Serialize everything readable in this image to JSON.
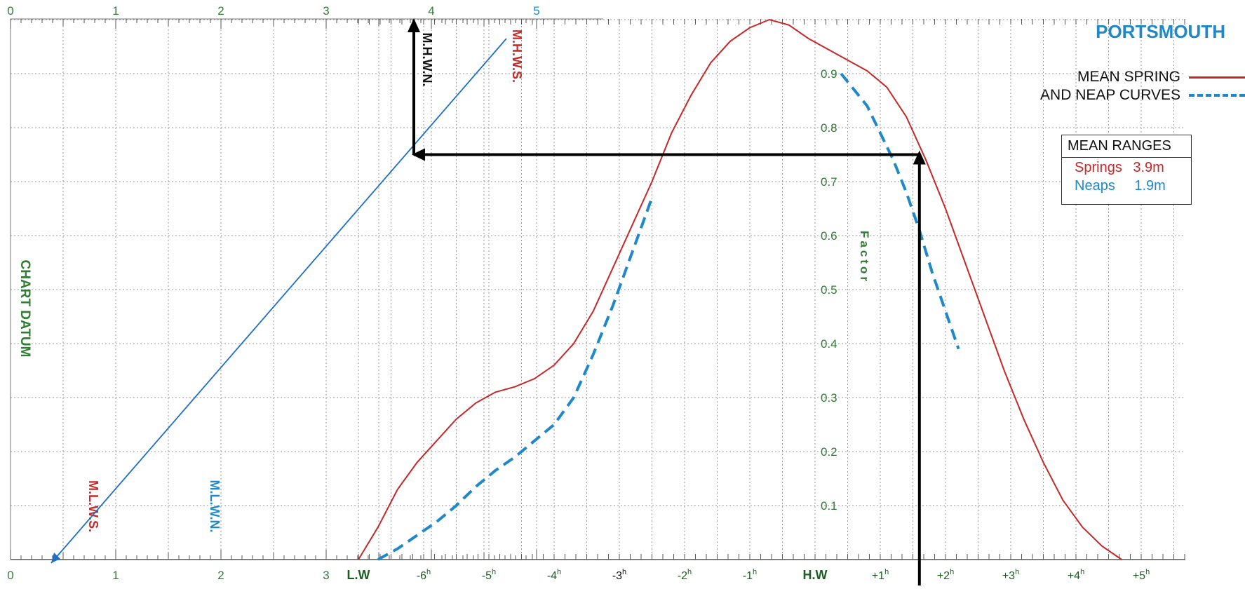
{
  "chart_data": {
    "type": "line",
    "title": "PORTSMOUTH",
    "legend": {
      "lines": [
        "MEAN SPRING",
        "AND NEAP CURVES"
      ],
      "placement": "top-right"
    },
    "mean_ranges": {
      "title": "MEAN RANGES",
      "rows": [
        {
          "label": "Springs",
          "value": "3.9m",
          "color": "#c62828"
        },
        {
          "label": "Neaps",
          "value": "1.9m",
          "color": "#1e88c8"
        }
      ]
    },
    "height_axis": {
      "ticks": [
        "0",
        "1",
        "2",
        "3",
        "4",
        "5"
      ],
      "range_m": [
        0,
        5
      ],
      "label": "CHART DATUM"
    },
    "height_markers": [
      {
        "label": "M.L.W.S.",
        "value": 0.7,
        "color": "#c62828"
      },
      {
        "label": "M.L.W.N.",
        "value": 1.9,
        "color": "#1e88c8"
      },
      {
        "label": "M.H.W.N.",
        "value": 3.8,
        "color": "#111111"
      },
      {
        "label": "M.H.W.S.",
        "value": 4.7,
        "color": "#c62828"
      }
    ],
    "time_axis": {
      "categories": [
        "L.W",
        "-6h",
        "-5h",
        "-4h",
        "-3h",
        "-2h",
        "-1h",
        "H.W",
        "+1h",
        "+2h",
        "+3h",
        "+4h",
        "+5h"
      ],
      "hw_labels": [
        {
          "label": "L.W",
          "value": -7,
          "color": "#1b5e20"
        },
        {
          "label": "-6",
          "value": -6,
          "color": "#1b5e20"
        },
        {
          "label": "-5",
          "value": -5,
          "color": "#1b5e20"
        },
        {
          "label": "-4",
          "value": -4,
          "color": "#1b5e20"
        },
        {
          "label": "-3",
          "value": -3,
          "color": "#111111"
        },
        {
          "label": "-2",
          "value": -2,
          "color": "#1b5e20"
        },
        {
          "label": "-1",
          "value": -1,
          "color": "#1b5e20"
        },
        {
          "label": "H.W",
          "value": 0,
          "color": "#1b5e20"
        },
        {
          "label": "+1",
          "value": 1,
          "color": "#1b5e20"
        },
        {
          "label": "+2",
          "value": 2,
          "color": "#1b5e20"
        },
        {
          "label": "+3",
          "value": 3,
          "color": "#1b5e20"
        },
        {
          "label": "+4",
          "value": 4,
          "color": "#1b5e20"
        },
        {
          "label": "+5",
          "value": 5,
          "color": "#1b5e20"
        }
      ],
      "hour_suffix": "h",
      "range_hours": [
        -7.2,
        5.8
      ]
    },
    "factor_axis": {
      "label": "Factor",
      "ticks": [
        "0.1",
        "0.2",
        "0.3",
        "0.4",
        "0.5",
        "0.6",
        "0.7",
        "0.8",
        "0.9"
      ],
      "range": [
        0,
        1
      ],
      "color": "#2e7d32"
    },
    "series": [
      {
        "name": "Springs",
        "style": "solid",
        "color": "#c62828",
        "points": [
          [
            -7.0,
            0.0
          ],
          [
            -6.7,
            0.06
          ],
          [
            -6.4,
            0.13
          ],
          [
            -6.1,
            0.18
          ],
          [
            -5.8,
            0.22
          ],
          [
            -5.5,
            0.26
          ],
          [
            -5.2,
            0.29
          ],
          [
            -4.9,
            0.31
          ],
          [
            -4.6,
            0.32
          ],
          [
            -4.3,
            0.335
          ],
          [
            -4.0,
            0.36
          ],
          [
            -3.7,
            0.4
          ],
          [
            -3.4,
            0.46
          ],
          [
            -3.1,
            0.54
          ],
          [
            -2.8,
            0.62
          ],
          [
            -2.5,
            0.7
          ],
          [
            -2.2,
            0.79
          ],
          [
            -1.9,
            0.86
          ],
          [
            -1.6,
            0.92
          ],
          [
            -1.3,
            0.96
          ],
          [
            -1.0,
            0.985
          ],
          [
            -0.7,
            1.0
          ],
          [
            -0.4,
            0.99
          ],
          [
            -0.1,
            0.965
          ],
          [
            0.2,
            0.945
          ],
          [
            0.5,
            0.925
          ],
          [
            0.8,
            0.905
          ],
          [
            1.1,
            0.875
          ],
          [
            1.4,
            0.82
          ],
          [
            1.7,
            0.74
          ],
          [
            2.0,
            0.65
          ],
          [
            2.3,
            0.55
          ],
          [
            2.6,
            0.45
          ],
          [
            2.9,
            0.35
          ],
          [
            3.2,
            0.26
          ],
          [
            3.5,
            0.18
          ],
          [
            3.8,
            0.11
          ],
          [
            4.1,
            0.06
          ],
          [
            4.4,
            0.025
          ],
          [
            4.7,
            0.0
          ]
        ]
      },
      {
        "name": "Neaps",
        "style": "dashed",
        "color": "#1e88c8",
        "points": [
          [
            -6.7,
            0.0
          ],
          [
            -6.4,
            0.02
          ],
          [
            -6.1,
            0.045
          ],
          [
            -5.8,
            0.07
          ],
          [
            -5.5,
            0.1
          ],
          [
            -5.2,
            0.135
          ],
          [
            -4.9,
            0.165
          ],
          [
            -4.6,
            0.19
          ],
          [
            -4.3,
            0.22
          ],
          [
            -4.0,
            0.25
          ],
          [
            -3.7,
            0.3
          ],
          [
            -3.4,
            0.38
          ],
          [
            -3.1,
            0.47
          ],
          [
            -2.8,
            0.57
          ],
          [
            -2.5,
            0.67
          ],
          [
            0.4,
            0.9
          ],
          [
            0.6,
            0.87
          ],
          [
            0.8,
            0.84
          ],
          [
            1.0,
            0.79
          ],
          [
            1.2,
            0.74
          ],
          [
            1.4,
            0.68
          ],
          [
            1.6,
            0.61
          ],
          [
            1.8,
            0.53
          ],
          [
            2.0,
            0.46
          ],
          [
            2.2,
            0.39
          ]
        ]
      }
    ],
    "worked_example": {
      "height_m": 3.8,
      "factor": 0.75,
      "time_hours": 1.6
    }
  }
}
